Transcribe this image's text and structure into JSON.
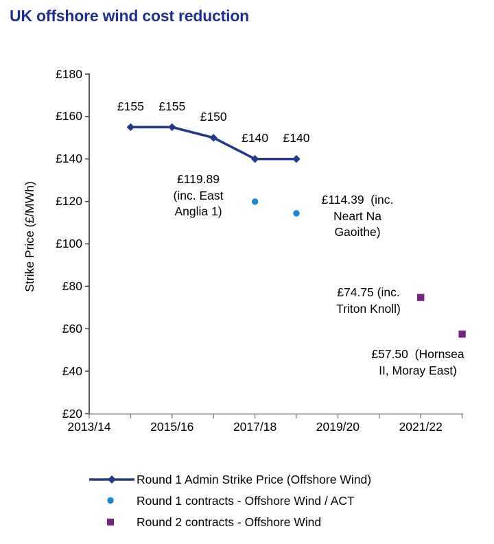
{
  "page": {
    "title": "UK offshore wind cost reduction"
  },
  "colors": {
    "title": "#1e3092",
    "axis_y": "#404040",
    "axis_x": "#8c8c8c",
    "text": "#000000",
    "round1_admin": "#24388d",
    "round1_contracts": "#1d87d2",
    "round2_contracts": "#772583"
  },
  "chart_data": {
    "type": "line",
    "title": "UK offshore wind cost reduction",
    "xlabel": "",
    "ylabel": "Strike Price (£/MWh)",
    "ylim": [
      20,
      180
    ],
    "ytick_step": 20,
    "ytick_prefix": "£",
    "grid": false,
    "legend_position": "bottom",
    "categories": [
      "2013/14",
      "2014/15",
      "2015/16",
      "2016/17",
      "2017/18",
      "2018/19",
      "2019/20",
      "2020/21",
      "2021/22",
      "2022/23"
    ],
    "xtick_label_every": 2,
    "xtick_labels_shown": [
      "2013/14",
      "2015/16",
      "2017/18",
      "2019/20",
      "2021/22"
    ],
    "series": [
      {
        "name": "Round 1 Admin Strike Price (Offshore Wind)",
        "type": "line",
        "marker": "diamond",
        "color_key": "round1_admin",
        "x": [
          "2014/15",
          "2015/16",
          "2016/17",
          "2017/18",
          "2018/19"
        ],
        "values": [
          155,
          155,
          150,
          140,
          140
        ],
        "point_labels": [
          "£155",
          "£155",
          "£150",
          "£140",
          "£140"
        ]
      },
      {
        "name": "Round 1 contracts - Offshore Wind / ACT",
        "type": "scatter",
        "marker": "circle",
        "color_key": "round1_contracts",
        "x": [
          "2017/18",
          "2018/19"
        ],
        "values": [
          119.89,
          114.39
        ]
      },
      {
        "name": "Round 2 contracts - Offshore Wind",
        "type": "scatter",
        "marker": "square",
        "color_key": "round2_contracts",
        "x": [
          "2021/22",
          "2022/23"
        ],
        "values": [
          74.75,
          57.5
        ]
      }
    ],
    "annotations": [
      {
        "id": "ann-east-anglia",
        "series": "Round 1 contracts - Offshore Wind / ACT",
        "value": 119.89,
        "lines": [
          "£119.89",
          "(inc. East",
          "Anglia 1)"
        ]
      },
      {
        "id": "ann-neart-na-gaoithe",
        "series": "Round 1 contracts - Offshore Wind / ACT",
        "value": 114.39,
        "lines": [
          "£114.39  (inc.",
          "Neart Na",
          "Gaoithe)"
        ]
      },
      {
        "id": "ann-triton-knoll",
        "series": "Round 2 contracts - Offshore Wind",
        "value": 74.75,
        "lines": [
          "£74.75 (inc.",
          "Triton Knoll)"
        ]
      },
      {
        "id": "ann-hornsea",
        "series": "Round 2 contracts - Offshore Wind",
        "value": 57.5,
        "lines": [
          "£57.50  (Hornsea",
          "II, Moray East)"
        ]
      }
    ]
  },
  "legend": {
    "items": [
      {
        "label": "Round 1 Admin Strike Price (Offshore Wind)",
        "marker": "line-diamond",
        "color_key": "round1_admin"
      },
      {
        "label": "Round 1 contracts - Offshore Wind / ACT",
        "marker": "circle",
        "color_key": "round1_contracts"
      },
      {
        "label": "Round 2 contracts - Offshore Wind",
        "marker": "square",
        "color_key": "round2_contracts"
      }
    ]
  }
}
